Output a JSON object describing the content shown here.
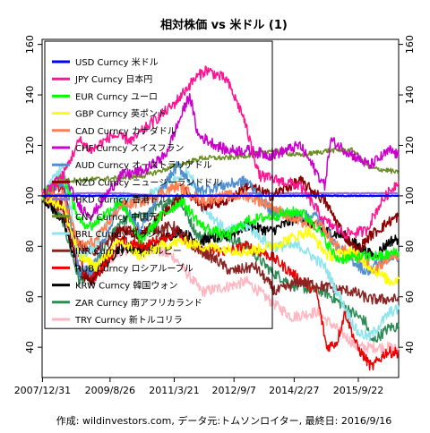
{
  "chart_data": {
    "type": "line",
    "title": "相対株価 vs 米ドル (1)",
    "footer": "作成: wildinvestors.com, データ元:トムソンロイター, 最終日: 2016/9/16",
    "x_ticks": [
      "2007/12/31",
      "2009/8/26",
      "2011/3/21",
      "2012/9/7",
      "2014/2/27",
      "2015/9/22"
    ],
    "x_range": [
      "2007-12-31",
      "2016-09-16"
    ],
    "ylim": [
      28,
      162
    ],
    "y_ticks": [
      40,
      60,
      80,
      100,
      120,
      140,
      160
    ],
    "y_axis_both_sides": true,
    "grid": false,
    "legend_position": "top-left",
    "series": [
      {
        "name": "USD Curncy 米ドル",
        "color": "#0000ff",
        "values": [
          [
            2007.99,
            100
          ],
          [
            2016.71,
            100
          ]
        ]
      },
      {
        "name": "JPY Curncy 日本円",
        "color": "#ff1493",
        "values": [
          [
            2007.99,
            100
          ],
          [
            2008.5,
            108
          ],
          [
            2008.9,
            122
          ],
          [
            2009.2,
            118
          ],
          [
            2009.7,
            124
          ],
          [
            2010.2,
            122
          ],
          [
            2010.6,
            128
          ],
          [
            2011.2,
            136
          ],
          [
            2011.7,
            146
          ],
          [
            2012.0,
            150
          ],
          [
            2012.5,
            146
          ],
          [
            2012.9,
            132
          ],
          [
            2013.3,
            108
          ],
          [
            2013.8,
            106
          ],
          [
            2014.3,
            104
          ],
          [
            2014.9,
            90
          ],
          [
            2015.4,
            85
          ],
          [
            2015.9,
            86
          ],
          [
            2016.3,
            98
          ],
          [
            2016.71,
            106
          ]
        ]
      },
      {
        "name": "EUR Curncy ユーロ",
        "color": "#00ff00",
        "values": [
          [
            2007.99,
            100
          ],
          [
            2008.5,
            108
          ],
          [
            2008.9,
            90
          ],
          [
            2009.2,
            88
          ],
          [
            2009.9,
            98
          ],
          [
            2010.4,
            82
          ],
          [
            2010.9,
            92
          ],
          [
            2011.4,
            98
          ],
          [
            2011.9,
            88
          ],
          [
            2012.5,
            84
          ],
          [
            2013.0,
            90
          ],
          [
            2013.6,
            92
          ],
          [
            2014.3,
            94
          ],
          [
            2014.7,
            88
          ],
          [
            2015.2,
            75
          ],
          [
            2015.9,
            76
          ],
          [
            2016.3,
            76
          ],
          [
            2016.71,
            78
          ]
        ]
      },
      {
        "name": "GBP Curncy 英ポンド",
        "color": "#ffff00",
        "values": [
          [
            2007.99,
            100
          ],
          [
            2008.5,
            96
          ],
          [
            2008.9,
            76
          ],
          [
            2009.3,
            72
          ],
          [
            2009.9,
            82
          ],
          [
            2010.4,
            76
          ],
          [
            2010.9,
            80
          ],
          [
            2011.4,
            82
          ],
          [
            2011.9,
            80
          ],
          [
            2012.5,
            79
          ],
          [
            2013.0,
            78
          ],
          [
            2013.6,
            80
          ],
          [
            2014.5,
            86
          ],
          [
            2015.0,
            76
          ],
          [
            2015.6,
            78
          ],
          [
            2016.0,
            72
          ],
          [
            2016.5,
            66
          ],
          [
            2016.71,
            67
          ]
        ]
      },
      {
        "name": "CAD Curncy カナダドル",
        "color": "#ff7f50",
        "values": [
          [
            2007.99,
            100
          ],
          [
            2008.5,
            100
          ],
          [
            2008.9,
            80
          ],
          [
            2009.3,
            82
          ],
          [
            2009.9,
            96
          ],
          [
            2010.5,
            98
          ],
          [
            2011.3,
            104
          ],
          [
            2011.9,
            98
          ],
          [
            2012.5,
            100
          ],
          [
            2013.0,
            100
          ],
          [
            2013.6,
            96
          ],
          [
            2014.2,
            90
          ],
          [
            2014.8,
            88
          ],
          [
            2015.2,
            80
          ],
          [
            2015.9,
            74
          ],
          [
            2016.1,
            70
          ],
          [
            2016.5,
            76
          ],
          [
            2016.71,
            76
          ]
        ]
      },
      {
        "name": "CHF Curncy スイスフラン",
        "color": "#cc00cc",
        "values": [
          [
            2007.99,
            100
          ],
          [
            2008.5,
            108
          ],
          [
            2008.9,
            96
          ],
          [
            2009.2,
            92
          ],
          [
            2009.9,
            108
          ],
          [
            2010.5,
            110
          ],
          [
            2011.0,
            116
          ],
          [
            2011.6,
            140
          ],
          [
            2011.8,
            124
          ],
          [
            2012.5,
            118
          ],
          [
            2013.0,
            118
          ],
          [
            2013.6,
            116
          ],
          [
            2014.3,
            120
          ],
          [
            2014.9,
            104
          ],
          [
            2015.05,
            122
          ],
          [
            2015.6,
            116
          ],
          [
            2016.0,
            112
          ],
          [
            2016.5,
            118
          ],
          [
            2016.71,
            116
          ]
        ]
      },
      {
        "name": "AUD Curncy オーストラリアドル",
        "color": "#4f8fd0",
        "values": [
          [
            2007.99,
            100
          ],
          [
            2008.5,
            106
          ],
          [
            2008.9,
            70
          ],
          [
            2009.2,
            70
          ],
          [
            2009.9,
            98
          ],
          [
            2010.4,
            86
          ],
          [
            2010.9,
            102
          ],
          [
            2011.3,
            112
          ],
          [
            2011.8,
            102
          ],
          [
            2012.4,
            104
          ],
          [
            2013.0,
            106
          ],
          [
            2013.6,
            94
          ],
          [
            2014.2,
            92
          ],
          [
            2014.7,
            92
          ],
          [
            2015.2,
            80
          ],
          [
            2015.9,
            70
          ],
          [
            2016.1,
            72
          ],
          [
            2016.5,
            76
          ],
          [
            2016.71,
            76
          ]
        ]
      },
      {
        "name": "NZD Curncy ニュージーランドドル",
        "color": "#8b0000",
        "values": [
          [
            2007.99,
            100
          ],
          [
            2008.5,
            96
          ],
          [
            2008.9,
            70
          ],
          [
            2009.2,
            66
          ],
          [
            2009.9,
            88
          ],
          [
            2010.4,
            84
          ],
          [
            2010.9,
            92
          ],
          [
            2011.5,
            102
          ],
          [
            2011.9,
            96
          ],
          [
            2012.5,
            98
          ],
          [
            2013.0,
            104
          ],
          [
            2013.6,
            100
          ],
          [
            2014.3,
            106
          ],
          [
            2014.9,
            98
          ],
          [
            2015.4,
            84
          ],
          [
            2015.7,
            78
          ],
          [
            2016.0,
            84
          ],
          [
            2016.5,
            90
          ],
          [
            2016.71,
            92
          ]
        ]
      },
      {
        "name": "HKD Curncy 香港ドル",
        "color": "#9370db",
        "values": [
          [
            2007.99,
            100
          ],
          [
            2008.9,
            101
          ],
          [
            2009.9,
            101
          ],
          [
            2010.9,
            100
          ],
          [
            2011.9,
            100
          ],
          [
            2012.9,
            101
          ],
          [
            2013.9,
            101
          ],
          [
            2014.9,
            101
          ],
          [
            2015.9,
            101
          ],
          [
            2016.71,
            101
          ]
        ]
      },
      {
        "name": "CNY Curncy 中国元",
        "color": "#6b8e23",
        "values": [
          [
            2007.99,
            100
          ],
          [
            2008.5,
            106
          ],
          [
            2009.9,
            107
          ],
          [
            2010.5,
            108
          ],
          [
            2011.3,
            112
          ],
          [
            2011.9,
            115
          ],
          [
            2012.5,
            115
          ],
          [
            2013.0,
            116
          ],
          [
            2013.6,
            118
          ],
          [
            2014.3,
            116
          ],
          [
            2015.0,
            118
          ],
          [
            2015.6,
            118
          ],
          [
            2016.0,
            111
          ],
          [
            2016.5,
            110
          ],
          [
            2016.71,
            109
          ]
        ]
      },
      {
        "name": "BRL Curncy ブラジルレアル",
        "color": "#8ee5ee",
        "values": [
          [
            2007.99,
            100
          ],
          [
            2008.5,
            112
          ],
          [
            2008.9,
            76
          ],
          [
            2009.3,
            80
          ],
          [
            2009.9,
            100
          ],
          [
            2010.4,
            98
          ],
          [
            2011.0,
            104
          ],
          [
            2011.6,
            110
          ],
          [
            2011.9,
            96
          ],
          [
            2012.5,
            86
          ],
          [
            2013.0,
            88
          ],
          [
            2013.6,
            80
          ],
          [
            2014.3,
            80
          ],
          [
            2014.9,
            72
          ],
          [
            2015.2,
            62
          ],
          [
            2015.7,
            46
          ],
          [
            2016.0,
            44
          ],
          [
            2016.5,
            54
          ],
          [
            2016.71,
            55
          ]
        ]
      },
      {
        "name": "INR Curncy インドルピー",
        "color": "#8b2323",
        "values": [
          [
            2007.99,
            100
          ],
          [
            2008.5,
            94
          ],
          [
            2008.9,
            80
          ],
          [
            2009.3,
            78
          ],
          [
            2009.9,
            86
          ],
          [
            2010.5,
            86
          ],
          [
            2011.2,
            88
          ],
          [
            2011.7,
            80
          ],
          [
            2012.3,
            74
          ],
          [
            2012.6,
            70
          ],
          [
            2013.2,
            72
          ],
          [
            2013.7,
            62
          ],
          [
            2014.3,
            66
          ],
          [
            2014.9,
            64
          ],
          [
            2015.6,
            62
          ],
          [
            2016.0,
            59
          ],
          [
            2016.71,
            59
          ]
        ]
      },
      {
        "name": "RUB Curncy ロシアルーブル",
        "color": "#ee0000",
        "values": [
          [
            2007.99,
            100
          ],
          [
            2008.5,
            104
          ],
          [
            2009.0,
            70
          ],
          [
            2009.3,
            68
          ],
          [
            2009.9,
            82
          ],
          [
            2010.5,
            80
          ],
          [
            2011.3,
            86
          ],
          [
            2011.8,
            78
          ],
          [
            2012.5,
            78
          ],
          [
            2013.0,
            80
          ],
          [
            2013.6,
            76
          ],
          [
            2014.2,
            68
          ],
          [
            2014.7,
            62
          ],
          [
            2014.95,
            40
          ],
          [
            2015.2,
            42
          ],
          [
            2015.4,
            54
          ],
          [
            2015.7,
            40
          ],
          [
            2016.05,
            32
          ],
          [
            2016.4,
            38
          ],
          [
            2016.71,
            38
          ]
        ]
      },
      {
        "name": "KRW Curncy 韓国ウォン",
        "color": "#000000",
        "values": [
          [
            2007.99,
            100
          ],
          [
            2008.5,
            90
          ],
          [
            2008.9,
            70
          ],
          [
            2009.2,
            66
          ],
          [
            2009.9,
            80
          ],
          [
            2010.5,
            78
          ],
          [
            2011.3,
            86
          ],
          [
            2011.8,
            82
          ],
          [
            2012.5,
            84
          ],
          [
            2013.0,
            88
          ],
          [
            2013.6,
            86
          ],
          [
            2014.3,
            92
          ],
          [
            2014.9,
            86
          ],
          [
            2015.4,
            84
          ],
          [
            2015.9,
            78
          ],
          [
            2016.1,
            76
          ],
          [
            2016.5,
            82
          ],
          [
            2016.71,
            83
          ]
        ]
      },
      {
        "name": "ZAR Curncy 南アフリカランド",
        "color": "#2e8b57",
        "values": [
          [
            2007.99,
            100
          ],
          [
            2008.5,
            90
          ],
          [
            2008.9,
            66
          ],
          [
            2009.2,
            70
          ],
          [
            2009.9,
            90
          ],
          [
            2010.5,
            92
          ],
          [
            2011.3,
            100
          ],
          [
            2011.8,
            84
          ],
          [
            2012.5,
            84
          ],
          [
            2013.0,
            80
          ],
          [
            2013.6,
            70
          ],
          [
            2014.2,
            64
          ],
          [
            2014.9,
            62
          ],
          [
            2015.4,
            56
          ],
          [
            2015.9,
            50
          ],
          [
            2016.05,
            42
          ],
          [
            2016.5,
            48
          ],
          [
            2016.71,
            48
          ]
        ]
      },
      {
        "name": "TRY Curncy 新トルコリラ",
        "color": "#ffb6c1",
        "values": [
          [
            2007.99,
            100
          ],
          [
            2008.5,
            92
          ],
          [
            2008.9,
            72
          ],
          [
            2009.3,
            70
          ],
          [
            2009.9,
            78
          ],
          [
            2010.5,
            80
          ],
          [
            2011.2,
            76
          ],
          [
            2011.9,
            62
          ],
          [
            2012.5,
            64
          ],
          [
            2013.0,
            66
          ],
          [
            2013.6,
            58
          ],
          [
            2014.1,
            52
          ],
          [
            2014.7,
            54
          ],
          [
            2015.3,
            46
          ],
          [
            2015.7,
            40
          ],
          [
            2016.0,
            40
          ],
          [
            2016.5,
            40
          ],
          [
            2016.71,
            39
          ]
        ]
      }
    ]
  }
}
